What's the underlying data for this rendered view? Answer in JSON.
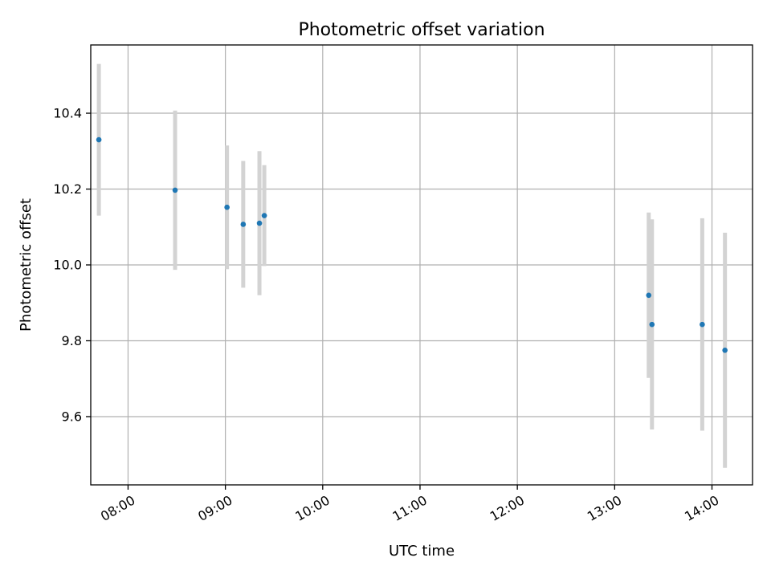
{
  "chart_data": {
    "type": "scatter",
    "title": "Photometric offset variation",
    "xlabel": "UTC time",
    "ylabel": "Photometric offset",
    "x_axis": {
      "kind": "time",
      "range": [
        "07:37",
        "14:25"
      ],
      "ticks": [
        "08:00",
        "09:00",
        "10:00",
        "11:00",
        "12:00",
        "13:00",
        "14:00"
      ]
    },
    "y_axis": {
      "range": [
        9.42,
        10.58
      ],
      "ticks": [
        9.6,
        9.8,
        10.0,
        10.2,
        10.4
      ],
      "tick_labels": [
        "9.6",
        "9.8",
        "10.0",
        "10.2",
        "10.4"
      ]
    },
    "grid": true,
    "marker_color": "#1f77b4",
    "errorbar_color": "#d3d3d3",
    "points": [
      {
        "x": "07:42",
        "y": 10.33,
        "err": 0.2
      },
      {
        "x": "08:29",
        "y": 10.197,
        "err": 0.21
      },
      {
        "x": "09:01",
        "y": 10.152,
        "err": 0.163
      },
      {
        "x": "09:11",
        "y": 10.107,
        "err": 0.167
      },
      {
        "x": "09:21",
        "y": 10.11,
        "err": 0.19
      },
      {
        "x": "09:24",
        "y": 10.13,
        "err": 0.133
      },
      {
        "x": "13:21",
        "y": 9.92,
        "err": 0.218
      },
      {
        "x": "13:23",
        "y": 9.843,
        "err": 0.277
      },
      {
        "x": "13:54",
        "y": 9.843,
        "err": 0.28
      },
      {
        "x": "14:08",
        "y": 9.775,
        "err": 0.31
      }
    ]
  }
}
